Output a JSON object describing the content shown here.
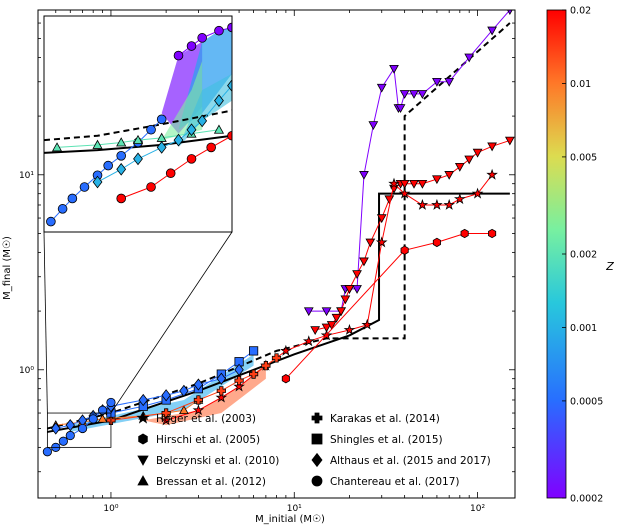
{
  "chart_data": {
    "type": "scatter",
    "title": "",
    "xlabel": "M_initial (M☉)",
    "ylabel": "M_final (M☉)",
    "xscale": "log",
    "yscale": "log",
    "xlim": [
      0.4,
      160
    ],
    "ylim": [
      0.22,
      70
    ],
    "x_ticks": [
      {
        "value": 1,
        "label": "10⁰"
      },
      {
        "value": 10,
        "label": "10¹"
      },
      {
        "value": 100,
        "label": "10²"
      }
    ],
    "y_ticks": [
      {
        "value": 1,
        "label": "10⁰"
      },
      {
        "value": 10,
        "label": "10¹"
      }
    ],
    "colorbar": {
      "label": "Z",
      "min": 0.0002,
      "max": 0.02,
      "scale": "log",
      "ticks": [
        0.0002,
        0.0005,
        0.001,
        0.002,
        0.005,
        0.01,
        0.02
      ],
      "tick_labels": [
        "0.0002",
        "0.0005",
        "0.001",
        "0.002",
        "0.005",
        "0.01",
        "0.02"
      ],
      "colormap": "rainbow"
    },
    "reference_lines": [
      {
        "name": "solid-reference",
        "style": "solid",
        "color": "#000000",
        "points": [
          [
            0.45,
            0.48
          ],
          [
            1,
            0.55
          ],
          [
            3,
            0.78
          ],
          [
            10,
            1.2
          ],
          [
            20,
            1.5
          ],
          [
            29,
            1.8
          ],
          [
            29,
            8.0
          ],
          [
            150,
            8.0
          ]
        ]
      },
      {
        "name": "dashed-reference",
        "style": "dashed",
        "color": "#000000",
        "points": [
          [
            0.45,
            0.5
          ],
          [
            1,
            0.6
          ],
          [
            3,
            0.85
          ],
          [
            8,
            1.25
          ],
          [
            15,
            1.45
          ],
          [
            40,
            1.45
          ],
          [
            40,
            20
          ],
          [
            150,
            60
          ]
        ]
      }
    ],
    "series": [
      {
        "name": "Belczynski et al. (2010)",
        "marker": "triangle-down",
        "Z": 0.0002,
        "x": [
          12,
          15,
          18,
          19,
          20,
          22,
          24,
          27,
          30,
          35,
          37,
          38,
          40,
          45,
          50,
          60,
          70,
          90,
          120,
          150
        ],
        "y": [
          2.0,
          2.0,
          2.0,
          2.6,
          2.6,
          2.6,
          10,
          18,
          28,
          35,
          22,
          22,
          26,
          26,
          26,
          30,
          30,
          40,
          55,
          70
        ]
      },
      {
        "name": "Belczynski et al. (2010)",
        "marker": "triangle-down",
        "Z": 0.02,
        "x": [
          13,
          15,
          16,
          17,
          18,
          19,
          20,
          22,
          24,
          26,
          30,
          33,
          35,
          38,
          40,
          45,
          50,
          60,
          70,
          80,
          90,
          100,
          120,
          150
        ],
        "y": [
          1.6,
          1.65,
          1.7,
          1.85,
          2.0,
          2.3,
          2.6,
          3.1,
          3.6,
          4.5,
          6.0,
          7.5,
          8.5,
          9.0,
          9.0,
          9.0,
          9.0,
          9.5,
          10,
          11,
          12,
          13,
          14,
          15
        ]
      },
      {
        "name": "Heger et al. (2003)",
        "marker": "star",
        "Z": 0.02,
        "x": [
          2.0,
          3.0,
          4.0,
          5.0,
          7.0,
          9.0,
          12,
          15,
          20,
          25,
          30,
          35,
          40,
          50,
          60,
          70,
          80,
          100,
          120
        ],
        "y": [
          0.55,
          0.62,
          0.72,
          0.82,
          1.05,
          1.25,
          1.4,
          1.5,
          1.6,
          1.7,
          4.5,
          9.0,
          8.0,
          7.0,
          7.0,
          7.0,
          7.5,
          8.0,
          10
        ]
      },
      {
        "name": "Hirschi et al. (2005)",
        "marker": "hexagon",
        "Z": 0.02,
        "x": [
          9,
          40,
          60,
          85,
          120
        ],
        "y": [
          0.9,
          4.1,
          4.5,
          5.0,
          5.0
        ]
      },
      {
        "name": "Bressan et al. (2012)",
        "marker": "triangle-up",
        "Z": 0.01,
        "x": [
          0.5,
          0.7,
          0.9,
          1.5,
          2.0,
          2.5,
          3.0
        ],
        "y": [
          0.52,
          0.54,
          0.56,
          0.58,
          0.6,
          0.62,
          0.7
        ]
      },
      {
        "name": "Karakas et al. (2014)",
        "marker": "plus",
        "Z": 0.014,
        "x": [
          1.0,
          2.0,
          3.0,
          4.0,
          5.0,
          6.0,
          7.0,
          8.0
        ],
        "y": [
          0.55,
          0.6,
          0.7,
          0.78,
          0.88,
          0.95,
          1.05,
          1.15
        ]
      },
      {
        "name": "Shingles et al. (2015)",
        "marker": "square",
        "Z": 0.0005,
        "x": [
          1.0,
          1.5,
          2.0,
          3.0,
          4.0,
          5.0,
          6.0
        ],
        "y": [
          0.6,
          0.65,
          0.7,
          0.8,
          0.95,
          1.1,
          1.25
        ]
      },
      {
        "name": "Althaus et al. (2015 and 2017)",
        "marker": "diamond",
        "Z": 0.0005,
        "x": [
          0.5,
          0.6,
          0.7,
          0.8,
          0.9,
          1.0,
          1.5,
          2.0,
          2.5,
          3.0,
          4.0,
          5.0
        ],
        "y": [
          0.5,
          0.52,
          0.55,
          0.58,
          0.62,
          0.65,
          0.7,
          0.74,
          0.78,
          0.84,
          0.9,
          1.0
        ]
      },
      {
        "name": "Chantereau et al. (2017)",
        "marker": "circle",
        "Z": 0.0005,
        "x": [
          0.45,
          0.5,
          0.55,
          0.6,
          0.7,
          0.8,
          0.9,
          1.0
        ],
        "y": [
          0.38,
          0.4,
          0.43,
          0.46,
          0.5,
          0.56,
          0.62,
          0.68
        ]
      }
    ],
    "inset": {
      "xlim": [
        0.4,
        10
      ],
      "ylim": [
        0.5,
        22
      ],
      "note": "zoomed view of low-mass region (box near M_initial 0.5–1, M_final 0.4–0.6)",
      "series": [
        {
          "name": "Chantereau et al. (2017)",
          "marker": "circle",
          "Z": 0.0005,
          "x": [
            0.45,
            0.55,
            0.65,
            0.8,
            1.0,
            1.2,
            1.5,
            2.0,
            2.5,
            3.0
          ],
          "y": [
            0.6,
            0.75,
            0.9,
            1.1,
            1.35,
            1.6,
            1.9,
            2.4,
            3.0,
            3.6
          ]
        },
        {
          "name": "Chantereau et al. (2017)",
          "marker": "circle",
          "Z": 0.0002,
          "x": [
            4,
            5,
            6,
            8,
            10
          ],
          "y": [
            11,
            13,
            15,
            17,
            18
          ]
        },
        {
          "name": "Chantereau et al. (2017)",
          "marker": "circle",
          "Z": 0.02,
          "x": [
            1.5,
            2.5,
            3.5,
            5,
            7,
            10
          ],
          "y": [
            0.9,
            1.1,
            1.4,
            1.8,
            2.2,
            2.7
          ]
        },
        {
          "name": "Bressan et al. (2012)",
          "marker": "triangle-up",
          "Z": 0.002,
          "x": [
            0.5,
            1.0,
            1.5,
            2.0,
            3.0,
            5.0,
            8.0
          ],
          "y": [
            2.2,
            2.3,
            2.4,
            2.5,
            2.6,
            2.8,
            3.0
          ]
        },
        {
          "name": "Althaus et al. (2015 and 2017)",
          "marker": "diamond",
          "Z": 0.001,
          "x": [
            1.0,
            1.5,
            2.0,
            3.0,
            4.0,
            5.0,
            6.0,
            8.0,
            10.0
          ],
          "y": [
            1.2,
            1.5,
            1.8,
            2.2,
            2.5,
            3.0,
            3.5,
            5.0,
            6.5
          ]
        }
      ]
    },
    "legend": [
      {
        "label": "Heger et al. (2003)",
        "marker": "star"
      },
      {
        "label": "Hirschi et al. (2005)",
        "marker": "hexagon"
      },
      {
        "label": "Belczynski et al. (2010)",
        "marker": "triangle-down"
      },
      {
        "label": "Bressan et al. (2012)",
        "marker": "triangle-up"
      },
      {
        "label": "Karakas et al. (2014)",
        "marker": "plus"
      },
      {
        "label": "Shingles et al. (2015)",
        "marker": "square"
      },
      {
        "label": "Althaus et al. (2015 and 2017)",
        "marker": "diamond"
      },
      {
        "label": "Chantereau et al. (2017)",
        "marker": "circle"
      }
    ],
    "legend_placement": "bottom-right",
    "grid": false
  }
}
